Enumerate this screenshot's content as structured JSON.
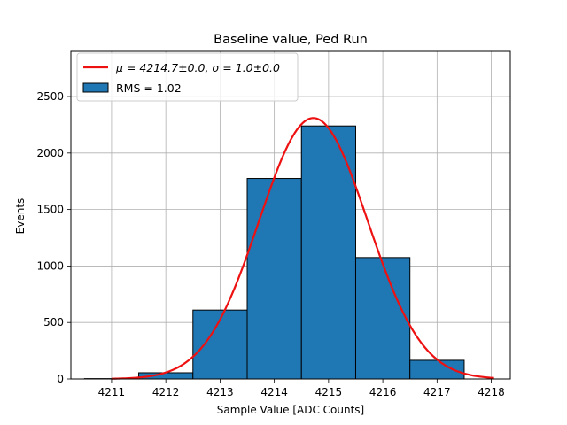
{
  "chart_data": {
    "type": "bar",
    "title": "Baseline value, Ped Run",
    "xlabel": "Sample Value [ADC Counts]",
    "ylabel": "Events",
    "xlim": [
      4210.25,
      4218.35
    ],
    "ylim": [
      0,
      2900
    ],
    "xticks": [
      4211,
      4212,
      4213,
      4214,
      4215,
      4216,
      4217,
      4218
    ],
    "yticks": [
      0,
      500,
      1000,
      1500,
      2000,
      2500
    ],
    "grid": true,
    "legend_position": "top-left",
    "bins": [
      {
        "left": 4210.5,
        "right": 4211.5,
        "count": 3
      },
      {
        "left": 4211.5,
        "right": 4212.5,
        "count": 55
      },
      {
        "left": 4212.5,
        "right": 4213.5,
        "count": 610
      },
      {
        "left": 4213.5,
        "right": 4214.5,
        "count": 1775
      },
      {
        "left": 4214.5,
        "right": 4215.5,
        "count": 2240
      },
      {
        "left": 4215.5,
        "right": 4216.5,
        "count": 1075
      },
      {
        "left": 4216.5,
        "right": 4217.5,
        "count": 165
      }
    ],
    "fit": {
      "label": "μ = 4214.7±0.0, σ = 1.0±0.0",
      "mu": 4214.72,
      "sigma": 1.0,
      "amplitude": 2310,
      "x_range": [
        4211.0,
        4218.05
      ],
      "color": "#ee1111"
    },
    "histogram": {
      "label": "RMS = 1.02",
      "color": "#1f77b4"
    }
  }
}
